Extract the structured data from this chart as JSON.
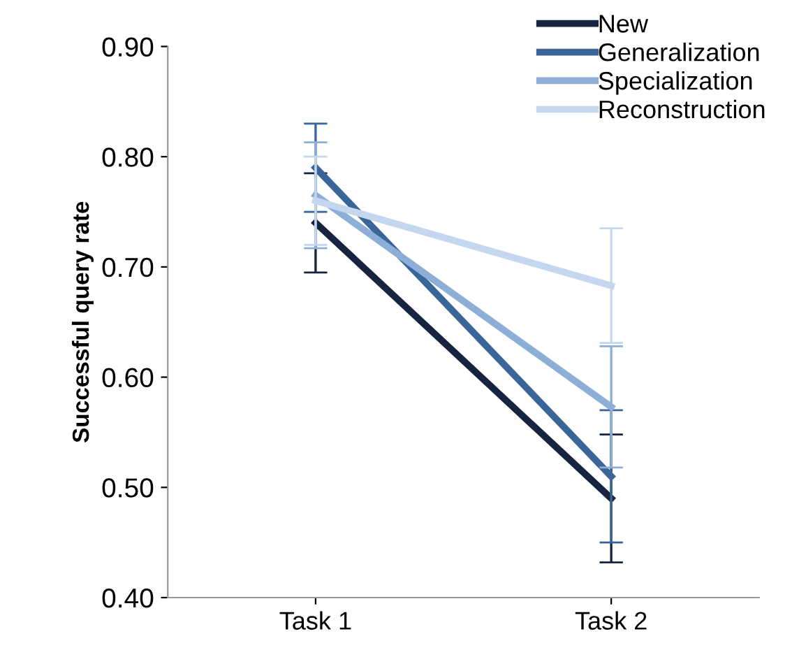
{
  "chart_data": {
    "type": "line",
    "ylabel": "Successful query rate",
    "categories": [
      "Task 1",
      "Task 2"
    ],
    "series": [
      {
        "name": "New",
        "color": "#17243f",
        "values": [
          0.74,
          0.49
        ],
        "errors": [
          0.045,
          0.058
        ]
      },
      {
        "name": "Generalization",
        "color": "#3a6599",
        "values": [
          0.79,
          0.51
        ],
        "errors": [
          0.04,
          0.06
        ]
      },
      {
        "name": "Specialization",
        "color": "#8daed6",
        "values": [
          0.765,
          0.573
        ],
        "errors": [
          0.048,
          0.055
        ]
      },
      {
        "name": "Reconstruction",
        "color": "#c5d7ee",
        "values": [
          0.76,
          0.683
        ],
        "errors": [
          0.04,
          0.052
        ]
      }
    ],
    "ylim": [
      0.4,
      0.9
    ],
    "yticks": [
      {
        "value": 0.4,
        "label": "0.40"
      },
      {
        "value": 0.5,
        "label": "0.50"
      },
      {
        "value": 0.6,
        "label": "0.60"
      },
      {
        "value": 0.7,
        "label": "0.70"
      },
      {
        "value": 0.8,
        "label": "0.80"
      },
      {
        "value": 0.9,
        "label": "0.90"
      }
    ],
    "grid": false,
    "legend": "top right",
    "marker": "none",
    "line_style": "solid"
  }
}
